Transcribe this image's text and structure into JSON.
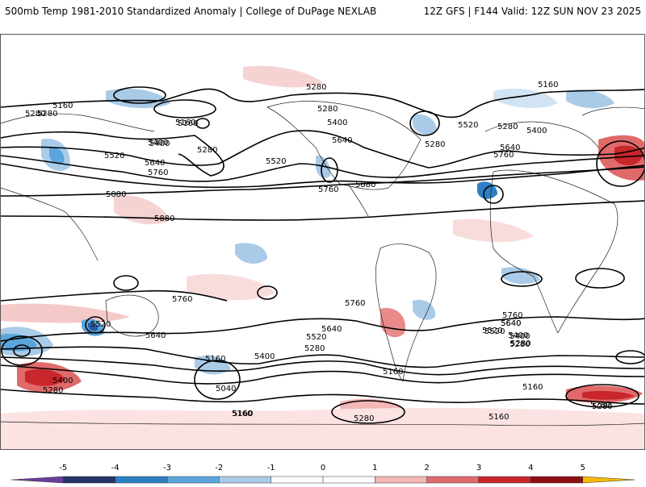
{
  "header": {
    "title_left": "500mb Temp 1981-2010 Standardized Anomaly | College of DuPage NEXLAB",
    "title_right": "12Z GFS | F144 Valid: 12Z SUN NOV 23 2025"
  },
  "colorbar": {
    "ticks": [
      "-5",
      "-4",
      "-3",
      "-2",
      "-1",
      "0",
      "1",
      "2",
      "3",
      "4",
      "5"
    ],
    "colors": [
      "#6a3d9a",
      "#23356b",
      "#2c7fc4",
      "#5aa6dc",
      "#a9cbe8",
      "#ffffff",
      "#ffffff",
      "#f4b7b7",
      "#e06a6a",
      "#c8262b",
      "#8b0f12",
      "#f5b800"
    ]
  },
  "contour_labels": [
    "5280",
    "5160",
    "5280",
    "5160",
    "5400",
    "5280",
    "5520",
    "5640",
    "5760",
    "5880",
    "5880",
    "5160",
    "5400",
    "5280",
    "5520",
    "5640",
    "5280",
    "5400",
    "5760",
    "5880",
    "5160",
    "5520",
    "5280",
    "5640",
    "5760",
    "5280",
    "5400",
    "5760",
    "5760",
    "5640",
    "5520",
    "5400",
    "5280",
    "5640",
    "5520",
    "5400",
    "5280",
    "5160",
    "5040",
    "5160",
    "5280",
    "5160",
    "5520",
    "5640",
    "5400",
    "5280",
    "5160",
    "5280",
    "5760",
    "5640",
    "5520",
    "5400",
    "5280",
    "5160",
    "5160",
    "5280"
  ]
}
